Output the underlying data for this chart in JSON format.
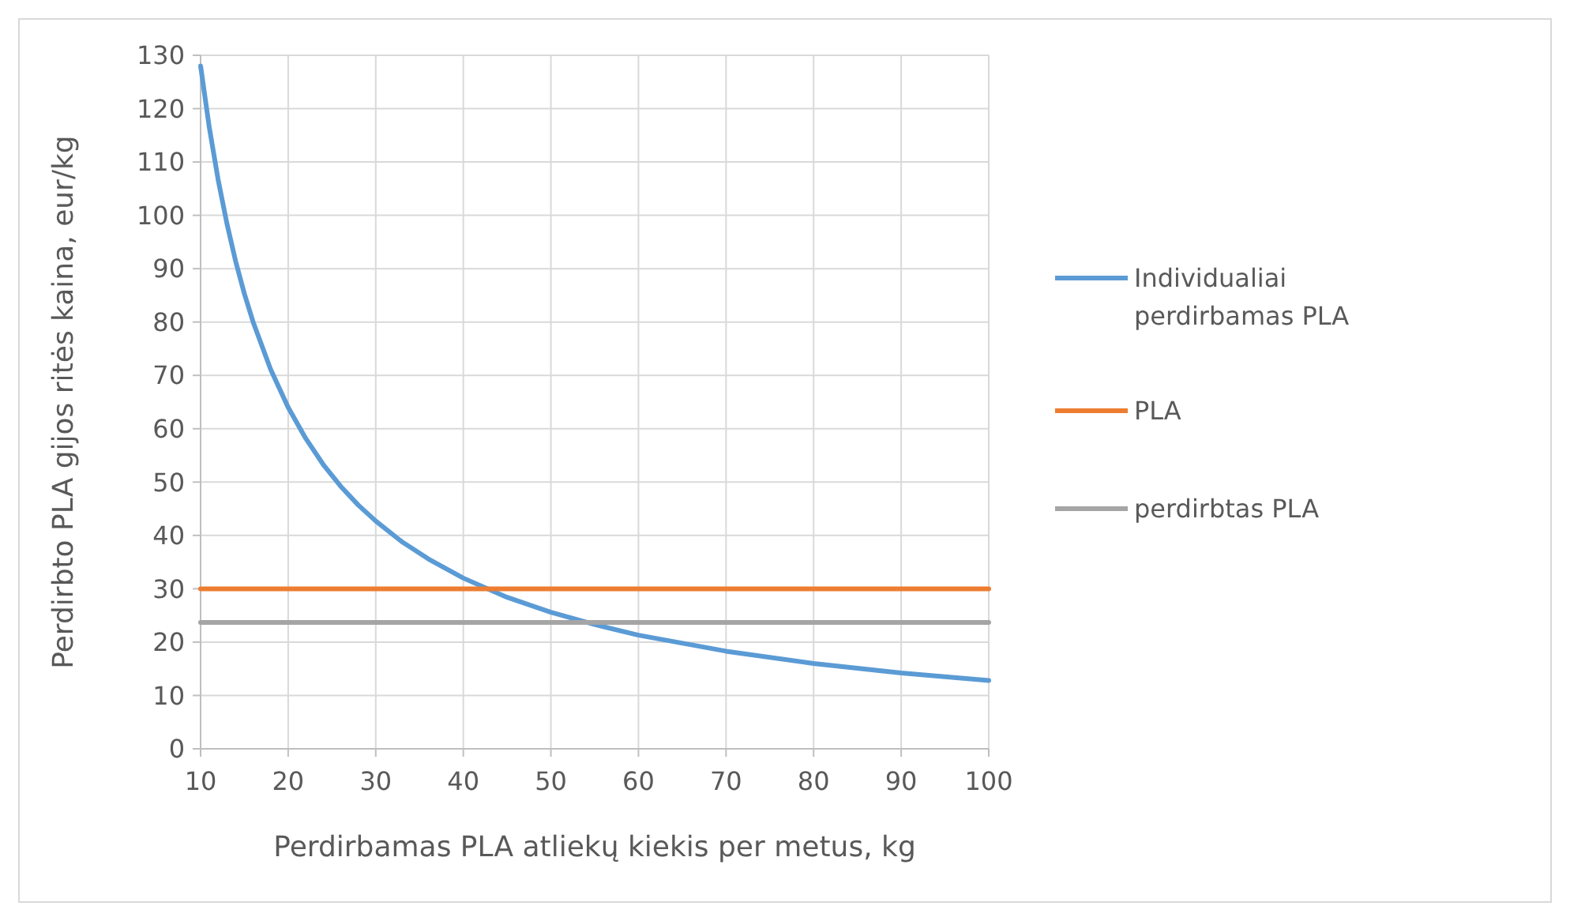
{
  "chart_data": {
    "type": "line",
    "xlabel": "Perdirbamas PLA atliekų kiekis per metus, kg",
    "ylabel": "Perdirbto PLA gijos ritės kaina, eur/kg",
    "x": [
      10,
      11,
      12,
      13,
      14,
      15,
      16,
      18,
      20,
      22,
      24,
      26,
      28,
      30,
      33,
      36,
      40,
      45,
      50,
      55,
      60,
      70,
      80,
      90,
      100
    ],
    "series": [
      {
        "name": "Individualiai perdirbamas PLA",
        "color": "#5b9bd5",
        "values": [
          128,
          116.4,
          106.7,
          98.5,
          91.4,
          85.3,
          80,
          71.1,
          64,
          58.2,
          53.3,
          49.2,
          45.7,
          42.7,
          38.8,
          35.6,
          32,
          28.4,
          25.6,
          23.3,
          21.3,
          18.3,
          16,
          14.2,
          12.8
        ]
      },
      {
        "name": "PLA",
        "color": "#ed7d31",
        "values": [
          30,
          30,
          30,
          30,
          30,
          30,
          30,
          30,
          30,
          30,
          30,
          30,
          30,
          30,
          30,
          30,
          30,
          30,
          30,
          30,
          30,
          30,
          30,
          30,
          30
        ]
      },
      {
        "name": "perdirbtas PLA",
        "color": "#a5a5a5",
        "values": [
          23.7,
          23.7,
          23.7,
          23.7,
          23.7,
          23.7,
          23.7,
          23.7,
          23.7,
          23.7,
          23.7,
          23.7,
          23.7,
          23.7,
          23.7,
          23.7,
          23.7,
          23.7,
          23.7,
          23.7,
          23.7,
          23.7,
          23.7,
          23.7,
          23.7
        ]
      }
    ],
    "xlim": [
      10,
      100
    ],
    "xticks": [
      10,
      20,
      30,
      40,
      50,
      60,
      70,
      80,
      90,
      100
    ],
    "ylim": [
      0,
      130
    ],
    "yticks": [
      0,
      10,
      20,
      30,
      40,
      50,
      60,
      70,
      80,
      90,
      100,
      110,
      120,
      130
    ],
    "grid": true,
    "legend": "right",
    "marker": "none",
    "line_style": "solid"
  }
}
